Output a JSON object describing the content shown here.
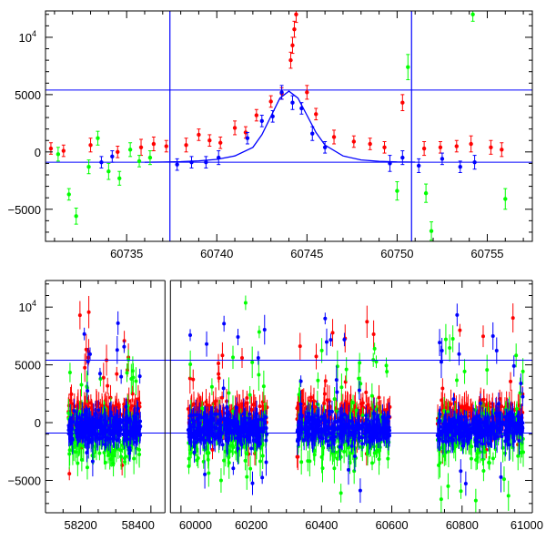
{
  "chart_data": [
    {
      "type": "scatter",
      "panel": "top",
      "title": "",
      "xlabel": "",
      "ylabel": "",
      "xlim": [
        60730.5,
        60757.5
      ],
      "ylim": [
        -7800,
        12300
      ],
      "x_ticks": [
        {
          "value": 60735,
          "label": "60735"
        },
        {
          "value": 60740,
          "label": "60740"
        },
        {
          "value": 60745,
          "label": "60745"
        },
        {
          "value": 60750,
          "label": "60750"
        },
        {
          "value": 60755,
          "label": "60755"
        }
      ],
      "y_ticks": [
        {
          "value": -5000,
          "label": "−5000"
        },
        {
          "value": 0,
          "label": "0"
        },
        {
          "value": 5000,
          "label": "5000"
        },
        {
          "value": 10000,
          "label": "10",
          "sup": "4"
        }
      ],
      "hlines": [
        5400,
        -900
      ],
      "vlines": [
        60737.4,
        60750.8
      ],
      "model_curve": {
        "name": "model",
        "color": "#0000ff",
        "x": [
          60736,
          60737,
          60738,
          60739,
          60740,
          60741,
          60742,
          60742.5,
          60743,
          60743.5,
          60744,
          60744.5,
          60745,
          60745.5,
          60746,
          60747,
          60748,
          60749,
          60750,
          60751
        ],
        "y": [
          -900,
          -880,
          -850,
          -780,
          -650,
          -350,
          400,
          1500,
          3100,
          4700,
          5300,
          4700,
          3200,
          1700,
          600,
          -350,
          -700,
          -820,
          -870,
          -890
        ]
      },
      "series": [
        {
          "name": "red",
          "color": "#ff0000",
          "x": [
            60730.8,
            60731.5,
            60733.0,
            60734.5,
            60735.8,
            60736.5,
            60737.2,
            60738.3,
            60739.0,
            60739.6,
            60740.2,
            60741.0,
            60741.6,
            60742.2,
            60743.0,
            60743.6,
            60744.1,
            60744.2,
            60744.3,
            60744.4,
            60745.0,
            60745.5,
            60746.5,
            60747.6,
            60748.5,
            60749.3,
            60750.3,
            60751.5,
            60752.4,
            60753.3,
            60754.1,
            60755.2,
            60755.8
          ],
          "y": [
            300,
            100,
            600,
            0,
            400,
            700,
            500,
            600,
            1500,
            1000,
            800,
            2100,
            1700,
            3200,
            4400,
            5100,
            8000,
            9300,
            10700,
            12000,
            5200,
            3300,
            1300,
            900,
            700,
            400,
            4300,
            300,
            400,
            500,
            700,
            400,
            200
          ],
          "err": [
            500,
            500,
            600,
            500,
            700,
            600,
            500,
            600,
            500,
            500,
            500,
            600,
            500,
            500,
            500,
            500,
            700,
            700,
            700,
            700,
            600,
            500,
            600,
            500,
            500,
            500,
            700,
            600,
            500,
            500,
            700,
            600,
            600
          ]
        },
        {
          "name": "green",
          "color": "#00ff00",
          "x": [
            60731.2,
            60731.8,
            60732.2,
            60732.9,
            60733.4,
            60734.0,
            60734.6,
            60735.2,
            60735.7,
            60736.3,
            60750.0,
            60750.6,
            60751.6,
            60751.9,
            60754.2,
            60756.0
          ],
          "y": [
            -200,
            -3700,
            -5600,
            -1300,
            1200,
            -1700,
            -2300,
            200,
            -800,
            -500,
            -3400,
            7400,
            -3600,
            -6900,
            12000,
            -4100
          ],
          "err": [
            600,
            500,
            700,
            600,
            600,
            700,
            600,
            600,
            500,
            600,
            800,
            1100,
            800,
            800,
            600,
            900
          ]
        },
        {
          "name": "blue",
          "color": "#0000ff",
          "x": [
            60733.6,
            60734.2,
            60737.8,
            60738.6,
            60739.4,
            60740.1,
            60741.7,
            60742.5,
            60743.1,
            60743.6,
            60744.2,
            60744.7,
            60745.3,
            60746.0,
            60749.6,
            60750.3,
            60751.2,
            60752.5,
            60753.5,
            60754.3
          ],
          "y": [
            -900,
            -400,
            -1100,
            -900,
            -900,
            -500,
            1200,
            2700,
            3100,
            5200,
            4300,
            3800,
            1600,
            400,
            -1000,
            -500,
            -1200,
            -600,
            -1300,
            -900
          ],
          "err": [
            500,
            500,
            500,
            500,
            500,
            600,
            500,
            500,
            500,
            600,
            600,
            500,
            600,
            500,
            700,
            600,
            600,
            500,
            500,
            600
          ]
        }
      ]
    },
    {
      "type": "scatter",
      "panel": "bottom",
      "title": "",
      "xlabel": "",
      "ylabel": "",
      "xlim": [
        58100,
        61000
      ],
      "ylim": [
        -7800,
        12300
      ],
      "broken_axis": true,
      "x_segments": [
        [
          58100,
          58440
        ],
        [
          59970,
          61000
        ]
      ],
      "x_ticks": [
        {
          "value": 58200,
          "label": "58200"
        },
        {
          "value": 58400,
          "label": "58400"
        },
        {
          "value": 60000,
          "label": "60000"
        },
        {
          "value": 60200,
          "label": "60200"
        },
        {
          "value": 60400,
          "label": "60400"
        },
        {
          "value": 60600,
          "label": "60600"
        },
        {
          "value": 60800,
          "label": "60800"
        },
        {
          "value": 61000,
          "label": "61000"
        }
      ],
      "y_ticks": [
        {
          "value": -5000,
          "label": "−5000"
        },
        {
          "value": 0,
          "label": "0"
        },
        {
          "value": 5000,
          "label": "5000"
        },
        {
          "value": 10000,
          "label": "10",
          "sup": "4"
        }
      ],
      "hlines": [
        5400,
        -900
      ],
      "seasons": [
        {
          "start": 58165,
          "end": 58370
        },
        {
          "start": 60020,
          "end": 60245
        },
        {
          "start": 60330,
          "end": 60595
        },
        {
          "start": 60730,
          "end": 60975
        }
      ],
      "series": [
        {
          "name": "red",
          "color": "#ff0000",
          "baseline": 800,
          "scatter": 1100
        },
        {
          "name": "green",
          "color": "#00ff00",
          "baseline": -1200,
          "scatter": 2000
        },
        {
          "name": "blue",
          "color": "#0000ff",
          "baseline": -500,
          "scatter": 1100
        }
      ]
    }
  ]
}
